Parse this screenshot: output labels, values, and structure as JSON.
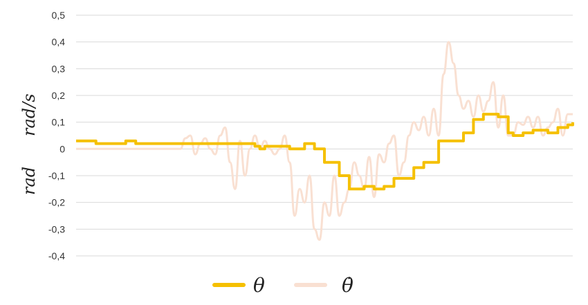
{
  "chart_data": {
    "type": "line",
    "ylabel_left": "rad",
    "ylabel_right": "rad/s",
    "ylim": [
      -0.4,
      0.5
    ],
    "yticks": [
      "0,5",
      "0,4",
      "0,3",
      "0,2",
      "0,1",
      "0",
      "-0,1",
      "-0,2",
      "-0,3",
      "-0,4"
    ],
    "grid": true,
    "legend_position": "bottom",
    "series": [
      {
        "name": "θ",
        "color": "#f5c000",
        "x": [
          0,
          3,
          4,
          8,
          10,
          12,
          13,
          14,
          15,
          16,
          17,
          18,
          19,
          20,
          22,
          25,
          29,
          31,
          33,
          35,
          36,
          37,
          38,
          40,
          42,
          43,
          46,
          48,
          50,
          53,
          55,
          57,
          58,
          60,
          62,
          64,
          68,
          70,
          73,
          76,
          78,
          80,
          82,
          85,
          87,
          88,
          89,
          90,
          91,
          92,
          94,
          95,
          97,
          99,
          100
        ],
        "values": [
          0.03,
          0.03,
          0.02,
          0.02,
          0.03,
          0.02,
          0.02,
          0.02,
          0.02,
          0.02,
          0.02,
          0.02,
          0.02,
          0.02,
          0.02,
          0.02,
          0.02,
          0.02,
          0.02,
          0.02,
          0.01,
          0,
          0.01,
          0.01,
          0.01,
          0,
          0.02,
          0,
          -0.05,
          -0.1,
          -0.15,
          -0.15,
          -0.14,
          -0.15,
          -0.14,
          -0.11,
          -0.07,
          -0.05,
          0.03,
          0.03,
          0.06,
          0.11,
          0.13,
          0.12,
          0.06,
          0.05,
          0.05,
          0.06,
          0.06,
          0.07,
          0.07,
          0.06,
          0.08,
          0.09,
          0.1
        ]
      },
      {
        "name": "θ̇",
        "color": "#f9e0d2",
        "x": [
          0,
          15,
          20,
          21,
          22,
          23,
          24,
          25,
          26,
          27,
          28,
          29,
          30,
          31,
          32,
          33,
          34,
          35,
          36,
          37,
          38,
          39,
          40,
          41,
          42,
          43,
          44,
          45,
          46,
          47,
          48,
          49,
          50,
          51,
          52,
          53,
          54,
          55,
          56,
          57,
          58,
          59,
          60,
          61,
          62,
          63,
          64,
          65,
          66,
          67,
          68,
          69,
          70,
          71,
          72,
          73,
          74,
          75,
          76,
          77,
          78,
          79,
          80,
          81,
          82,
          83,
          84,
          85,
          86,
          87,
          88,
          89,
          90,
          91,
          92,
          93,
          94,
          95,
          96,
          97,
          98,
          99,
          100
        ],
        "values": [
          0,
          0,
          0,
          0,
          0.04,
          0.05,
          -0.02,
          0.02,
          0.04,
          0,
          -0.02,
          0.05,
          0.08,
          -0.05,
          -0.15,
          0.03,
          -0.1,
          0,
          0.05,
          0,
          0.03,
          0,
          -0.02,
          0,
          0.05,
          -0.05,
          -0.25,
          -0.15,
          -0.2,
          -0.1,
          -0.3,
          -0.34,
          -0.2,
          -0.25,
          -0.1,
          -0.25,
          -0.2,
          -0.15,
          -0.05,
          -0.1,
          -0.15,
          -0.03,
          -0.18,
          -0.02,
          -0.05,
          0.02,
          0.05,
          -0.1,
          -0.05,
          0.05,
          0.1,
          0.07,
          0.12,
          0.05,
          0.15,
          0.05,
          0.28,
          0.4,
          0.32,
          0.2,
          0.15,
          0.18,
          0.12,
          0.2,
          0.14,
          0.18,
          0.25,
          0.08,
          0.2,
          0.05,
          0.05,
          0.1,
          0.09,
          0.12,
          0.08,
          0.12,
          0.05,
          0.08,
          0.1,
          0.15,
          0.05,
          0.13,
          0.13
        ]
      }
    ]
  }
}
